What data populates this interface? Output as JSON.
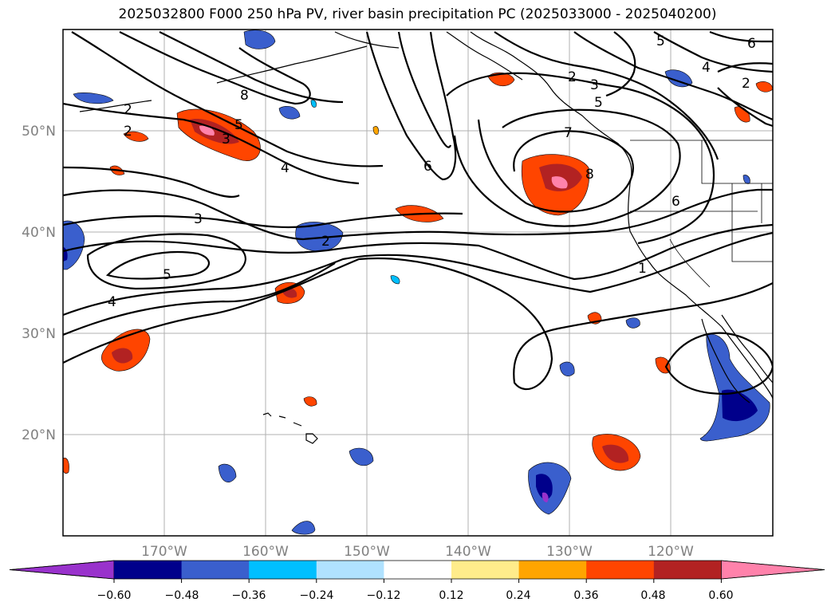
{
  "title": "2025032800 F000 250 hPa PV, river basin precipitation PC (2025033000 - 2025040200)",
  "map": {
    "lon_range": [
      -180,
      -110
    ],
    "lat_range": [
      10,
      60
    ],
    "lat_labels": [
      "20°N",
      "30°N",
      "40°N",
      "50°N"
    ],
    "lon_labels": [
      "170°W",
      "160°W",
      "150°W",
      "140°W",
      "130°W",
      "120°W"
    ],
    "contour_labels": [
      "1",
      "2",
      "2",
      "2",
      "2",
      "2",
      "3",
      "3",
      "3",
      "4",
      "4",
      "4",
      "5",
      "5",
      "5",
      "5",
      "6",
      "6",
      "6",
      "7",
      "8",
      "8"
    ]
  },
  "colorbar": {
    "ticks": [
      "−0.60",
      "−0.48",
      "−0.36",
      "−0.24",
      "−0.12",
      "0.12",
      "0.24",
      "0.36",
      "0.48",
      "0.60"
    ],
    "colors": [
      "#9932cc",
      "#00008b",
      "#3a5fcd",
      "#00bfff",
      "#b0e2ff",
      "#ffffff",
      "#ffec8b",
      "#ffa500",
      "#ff4500",
      "#b22222",
      "#ff82ab"
    ]
  }
}
